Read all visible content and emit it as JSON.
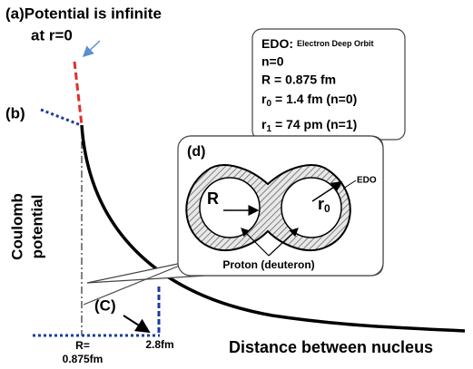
{
  "annotations": {
    "a_line1": "(a)Potential is infinite",
    "a_line2": "at r=0",
    "b": "(b)",
    "c": "(C)",
    "d": "(d)"
  },
  "info_box": {
    "edo_label": "EDO:",
    "edo_full": "Electron Deep Orbit",
    "n": "n=0",
    "R": "R = 0.875 fm",
    "r0": {
      "symbol": "r",
      "subscript": "0",
      "text": "= 1.4 fm (n=0)"
    },
    "r1": {
      "symbol": "r",
      "subscript": "1",
      "text": "= 74 pm (n=1)"
    }
  },
  "axis": {
    "y_label_line1": "Coulomb",
    "y_label_line2": "potential",
    "x_label": "Distance between nucleus",
    "tick_R_line1": "R=",
    "tick_R_line2": "0.875fm",
    "tick_28": "2.8fm"
  },
  "inset": {
    "edo": "EDO",
    "R": "R",
    "r0_symbol": "r",
    "r0_subscript": "0",
    "proton": "Proton (deuteron)"
  }
}
